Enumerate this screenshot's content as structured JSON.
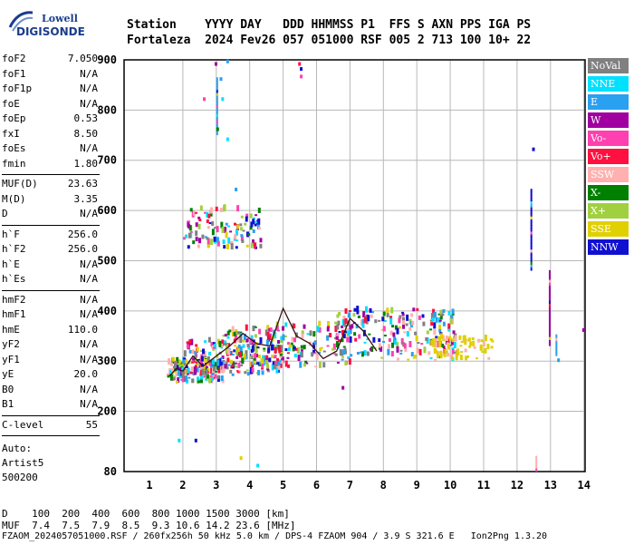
{
  "logo": {
    "line1": "Lowell",
    "line2": "DIGISONDE"
  },
  "header": {
    "row1": "Station    YYYY DAY   DDD HHMMSS P1  FFS S AXN PPS IGA PS",
    "row2": "Fortaleza  2024 Fev26 057 051000 RSF 005 2 713 100 10+ 22"
  },
  "params": {
    "group1": [
      {
        "name": "foF2",
        "value": "7.050"
      },
      {
        "name": "foF1",
        "value": "N/A"
      },
      {
        "name": "foF1p",
        "value": "N/A"
      },
      {
        "name": "foE",
        "value": "N/A"
      },
      {
        "name": "foEp",
        "value": "0.53"
      },
      {
        "name": "fxI",
        "value": "8.50"
      },
      {
        "name": "foEs",
        "value": "N/A"
      },
      {
        "name": "fmin",
        "value": "1.80"
      }
    ],
    "group2": [
      {
        "name": "MUF(D)",
        "value": "23.63"
      },
      {
        "name": "M(D)",
        "value": "3.35"
      },
      {
        "name": "D",
        "value": "N/A"
      }
    ],
    "group3": [
      {
        "name": "h`F",
        "value": "256.0"
      },
      {
        "name": "h`F2",
        "value": "256.0"
      },
      {
        "name": "h`E",
        "value": "N/A"
      },
      {
        "name": "h`Es",
        "value": "N/A"
      }
    ],
    "group4": [
      {
        "name": "hmF2",
        "value": "N/A"
      },
      {
        "name": "hmF1",
        "value": "N/A"
      },
      {
        "name": "hmE",
        "value": "110.0"
      },
      {
        "name": "yF2",
        "value": "N/A"
      },
      {
        "name": "yF1",
        "value": "N/A"
      },
      {
        "name": "yE",
        "value": "20.0"
      },
      {
        "name": "B0",
        "value": "N/A"
      },
      {
        "name": "B1",
        "value": "N/A"
      }
    ],
    "clevel": {
      "name": "C-level",
      "value": "55"
    },
    "auto": [
      "Auto:",
      "Artist5",
      "500200"
    ]
  },
  "legend": [
    {
      "label": "NoVal",
      "color": "#808080"
    },
    {
      "label": "NNE",
      "color": "#00e0ff"
    },
    {
      "label": "E",
      "color": "#2aa0f0"
    },
    {
      "label": "W",
      "color": "#a000a0"
    },
    {
      "label": "Vo-",
      "color": "#ff40b0"
    },
    {
      "label": "Vo+",
      "color": "#ff1040"
    },
    {
      "label": "SSW",
      "color": "#ffb0b0"
    },
    {
      "label": "X-",
      "color": "#008000"
    },
    {
      "label": "X+",
      "color": "#a0d040"
    },
    {
      "label": "SSE",
      "color": "#e0d000"
    },
    {
      "label": "NNW",
      "color": "#1010d0"
    }
  ],
  "chart_data": {
    "type": "scatter",
    "title": "",
    "xlabel": "",
    "ylabel": "",
    "xlim": [
      1,
      14
    ],
    "ylim": [
      80,
      900
    ],
    "x_ticks": [
      1,
      2,
      3,
      4,
      5,
      6,
      7,
      8,
      9,
      10,
      11,
      12,
      13,
      14
    ],
    "y_ticks": [
      80,
      200,
      300,
      400,
      500,
      600,
      700,
      800,
      900
    ],
    "grid": true,
    "trace": {
      "x": [
        1.6,
        1.8,
        2.0,
        2.3,
        2.6,
        3.0,
        3.4,
        3.8,
        4.2,
        4.6,
        5.0,
        5.4,
        5.8,
        6.2,
        6.6,
        7.0,
        7.4,
        7.8
      ],
      "y": [
        270,
        285,
        280,
        310,
        290,
        310,
        330,
        355,
        335,
        330,
        405,
        350,
        335,
        305,
        320,
        385,
        360,
        320
      ]
    },
    "clusters": [
      {
        "x": [
          1.5,
          3.2
        ],
        "y": [
          255,
          300
        ],
        "count": 160
      },
      {
        "x": [
          2.0,
          5.0
        ],
        "y": [
          270,
          340
        ],
        "count": 200
      },
      {
        "x": [
          3.0,
          7.0
        ],
        "y": [
          285,
          370
        ],
        "count": 180
      },
      {
        "x": [
          6.5,
          10.2
        ],
        "y": [
          300,
          400
        ],
        "count": 220
      },
      {
        "x": [
          9.4,
          11.3
        ],
        "y": [
          300,
          345
        ],
        "count": 70
      },
      {
        "x": [
          2.0,
          4.3
        ],
        "y": [
          520,
          600
        ],
        "count": 110
      }
    ],
    "sparse_points": [
      {
        "x": 2.95,
        "y": 890,
        "series": "W"
      },
      {
        "x": 3.3,
        "y": 895,
        "series": "E"
      },
      {
        "x": 3.1,
        "y": 860,
        "series": "E"
      },
      {
        "x": 3.15,
        "y": 820,
        "series": "NNE"
      },
      {
        "x": 2.6,
        "y": 820,
        "series": "Vo-"
      },
      {
        "x": 3.0,
        "y": 760,
        "series": "X-"
      },
      {
        "x": 3.3,
        "y": 740,
        "series": "NNE"
      },
      {
        "x": 3.55,
        "y": 640,
        "series": "E"
      },
      {
        "x": 5.45,
        "y": 890,
        "series": "Vo+"
      },
      {
        "x": 5.5,
        "y": 880,
        "series": "NNW"
      },
      {
        "x": 5.5,
        "y": 865,
        "series": "Vo-"
      },
      {
        "x": 12.45,
        "y": 720,
        "series": "NNW"
      },
      {
        "x": 13.95,
        "y": 360,
        "series": "W"
      },
      {
        "x": 1.85,
        "y": 140,
        "series": "NNE"
      },
      {
        "x": 2.35,
        "y": 140,
        "series": "NNW"
      },
      {
        "x": 3.7,
        "y": 105,
        "series": "SSE"
      },
      {
        "x": 4.2,
        "y": 90,
        "series": "NNE"
      },
      {
        "x": 6.75,
        "y": 245,
        "series": "W"
      },
      {
        "x": 13.2,
        "y": 300,
        "series": "E"
      }
    ],
    "vertical_streaks": [
      {
        "x": 12.4,
        "y": [
          480,
          640
        ],
        "series": "NNW"
      },
      {
        "x": 12.95,
        "y": [
          330,
          480
        ],
        "series": "W"
      },
      {
        "x": 13.15,
        "y": [
          310,
          350
        ],
        "series": "E"
      },
      {
        "x": 12.55,
        "y": [
          80,
          110
        ],
        "series": "SSW"
      },
      {
        "x": 3.0,
        "y": [
          750,
          860
        ],
        "series": "E"
      }
    ]
  },
  "footer": {
    "row1": "D    100  200  400  600  800 1000 1500 3000 [km]",
    "row2": "MUF  7.4  7.5  7.9  8.5  9.3 10.6 14.2 23.6 [MHz]",
    "row3": "FZAOM_2024057051000.RSF / 260fx256h 50 kHz 5.0 km / DPS-4 FZAOM 904 / 3.9 S 321.6 E   Ion2Png 1.3.20"
  }
}
